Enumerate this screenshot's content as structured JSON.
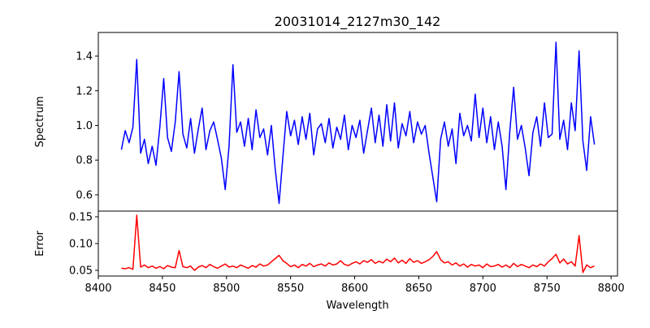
{
  "chart_data": {
    "type": "line",
    "title": "20031014_2127m30_142",
    "xlabel": "Wavelength",
    "xlim": [
      8400,
      8805
    ],
    "xticks": [
      8400,
      8450,
      8500,
      8550,
      8600,
      8650,
      8700,
      8750,
      8800
    ],
    "x_start": 8418,
    "x_step": 3,
    "panels": [
      {
        "name": "spectrum",
        "ylabel": "Spectrum",
        "ylim": [
          0.506,
          1.536
        ],
        "yticks": [
          0.6,
          0.8,
          1.0,
          1.2,
          1.4
        ],
        "ytick_labels": [
          "0.6",
          "0.8",
          "1.0",
          "1.2",
          "1.4"
        ],
        "color": "#0000ff",
        "values": [
          0.86,
          0.97,
          0.9,
          0.99,
          1.38,
          0.84,
          0.92,
          0.78,
          0.88,
          0.77,
          0.99,
          1.27,
          0.93,
          0.85,
          1.02,
          1.31,
          0.95,
          0.87,
          1.04,
          0.84,
          0.98,
          1.1,
          0.86,
          0.97,
          1.02,
          0.92,
          0.81,
          0.63,
          0.88,
          1.35,
          0.96,
          1.02,
          0.88,
          1.04,
          0.86,
          1.09,
          0.93,
          0.98,
          0.83,
          1.0,
          0.75,
          0.55,
          0.82,
          1.08,
          0.94,
          1.03,
          0.89,
          1.05,
          0.92,
          1.07,
          0.83,
          0.98,
          1.01,
          0.9,
          1.04,
          0.87,
          0.99,
          0.92,
          1.06,
          0.86,
          1.0,
          0.93,
          1.03,
          0.84,
          0.97,
          1.1,
          0.9,
          1.06,
          0.88,
          1.12,
          0.91,
          1.13,
          0.87,
          1.01,
          0.94,
          1.08,
          0.9,
          1.02,
          0.95,
          1.0,
          0.84,
          0.7,
          0.56,
          0.92,
          1.02,
          0.88,
          0.98,
          0.78,
          1.07,
          0.94,
          1.0,
          0.91,
          1.18,
          0.93,
          1.1,
          0.9,
          1.05,
          0.86,
          1.02,
          0.88,
          0.63,
          0.97,
          1.22,
          0.92,
          1.0,
          0.87,
          0.71,
          0.96,
          1.05,
          0.88,
          1.13,
          0.93,
          0.95,
          1.48,
          0.92,
          1.03,
          0.86,
          1.13,
          0.97,
          1.43,
          0.91,
          0.74,
          1.05,
          0.89
        ]
      },
      {
        "name": "error",
        "ylabel": "Error",
        "ylim": [
          0.0394,
          0.1606
        ],
        "yticks": [
          0.05,
          0.1,
          0.15
        ],
        "ytick_labels": [
          "0.05",
          "0.10",
          "0.15"
        ],
        "color": "#ff0000",
        "values": [
          0.054,
          0.053,
          0.055,
          0.052,
          0.153,
          0.056,
          0.06,
          0.055,
          0.058,
          0.054,
          0.057,
          0.053,
          0.059,
          0.056,
          0.055,
          0.087,
          0.057,
          0.055,
          0.058,
          0.05,
          0.056,
          0.059,
          0.055,
          0.061,
          0.057,
          0.054,
          0.058,
          0.062,
          0.056,
          0.058,
          0.055,
          0.06,
          0.057,
          0.054,
          0.059,
          0.056,
          0.062,
          0.058,
          0.06,
          0.066,
          0.072,
          0.078,
          0.068,
          0.063,
          0.057,
          0.06,
          0.055,
          0.061,
          0.058,
          0.063,
          0.057,
          0.06,
          0.062,
          0.058,
          0.064,
          0.06,
          0.062,
          0.068,
          0.061,
          0.059,
          0.063,
          0.066,
          0.062,
          0.068,
          0.065,
          0.07,
          0.063,
          0.067,
          0.064,
          0.071,
          0.066,
          0.073,
          0.064,
          0.069,
          0.063,
          0.072,
          0.065,
          0.068,
          0.063,
          0.066,
          0.07,
          0.076,
          0.085,
          0.07,
          0.064,
          0.066,
          0.06,
          0.064,
          0.058,
          0.062,
          0.056,
          0.061,
          0.058,
          0.06,
          0.055,
          0.062,
          0.057,
          0.058,
          0.061,
          0.056,
          0.06,
          0.055,
          0.063,
          0.057,
          0.061,
          0.058,
          0.055,
          0.06,
          0.057,
          0.062,
          0.058,
          0.066,
          0.072,
          0.08,
          0.064,
          0.071,
          0.062,
          0.066,
          0.058,
          0.115,
          0.046,
          0.06,
          0.055,
          0.058
        ]
      }
    ]
  }
}
